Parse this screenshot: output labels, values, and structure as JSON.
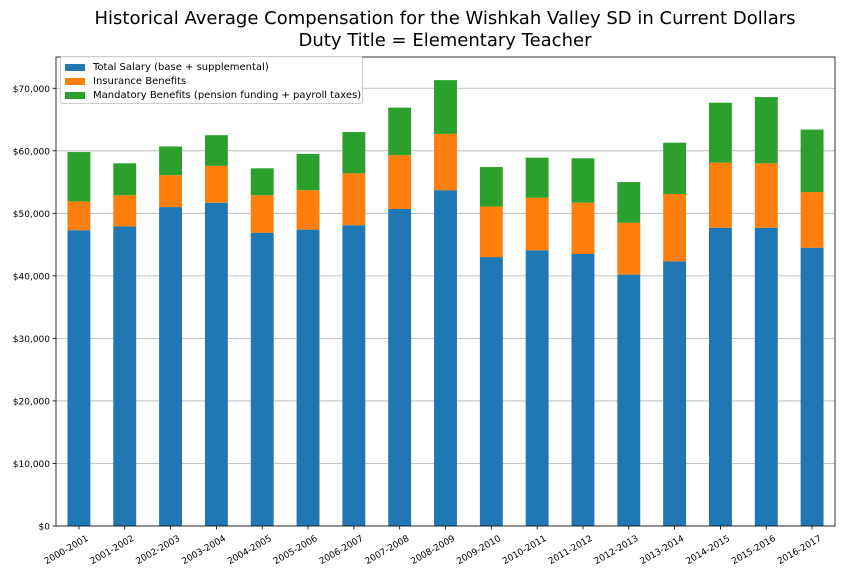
{
  "chart_data": {
    "type": "bar",
    "stacked": true,
    "title": "Historical Average Compensation for the Wishkah Valley SD in Current Dollars",
    "subtitle": "Duty Title = Elementary Teacher",
    "xlabel": "",
    "ylabel": "",
    "ylim": [
      0,
      75000
    ],
    "yticks": [
      0,
      10000,
      20000,
      30000,
      40000,
      50000,
      60000,
      70000
    ],
    "ytick_labels": [
      "$0",
      "$10,000",
      "$20,000",
      "$30,000",
      "$40,000",
      "$50,000",
      "$60,000",
      "$70,000"
    ],
    "grid": "horizontal",
    "legend_position": "top-left",
    "categories": [
      "2000-2001",
      "2001-2002",
      "2002-2003",
      "2003-2004",
      "2004-2005",
      "2005-2006",
      "2006-2007",
      "2007-2008",
      "2008-2009",
      "2009-2010",
      "2010-2011",
      "2011-2012",
      "2012-2013",
      "2013-2014",
      "2014-2015",
      "2015-2016",
      "2016-2017"
    ],
    "series": [
      {
        "name": "Total Salary (base + supplemental)",
        "color": "#1f77b4",
        "values": [
          47300,
          47900,
          51000,
          51700,
          46900,
          47400,
          48100,
          50700,
          53700,
          43000,
          44100,
          43500,
          40200,
          42300,
          47700,
          47700,
          44500
        ]
      },
      {
        "name": "Insurance Benefits",
        "color": "#ff7f0e",
        "values": [
          4600,
          5000,
          5100,
          5900,
          6000,
          6300,
          8300,
          8600,
          9000,
          8100,
          8400,
          8200,
          8300,
          10800,
          10400,
          10300,
          8900
        ]
      },
      {
        "name": "Mandatory Benefits (pension funding + payroll taxes)",
        "color": "#2ca02c",
        "values": [
          7900,
          5100,
          4600,
          4900,
          4300,
          5800,
          6600,
          7600,
          8600,
          6300,
          6400,
          7100,
          6500,
          8200,
          9600,
          10600,
          10000
        ]
      }
    ]
  }
}
